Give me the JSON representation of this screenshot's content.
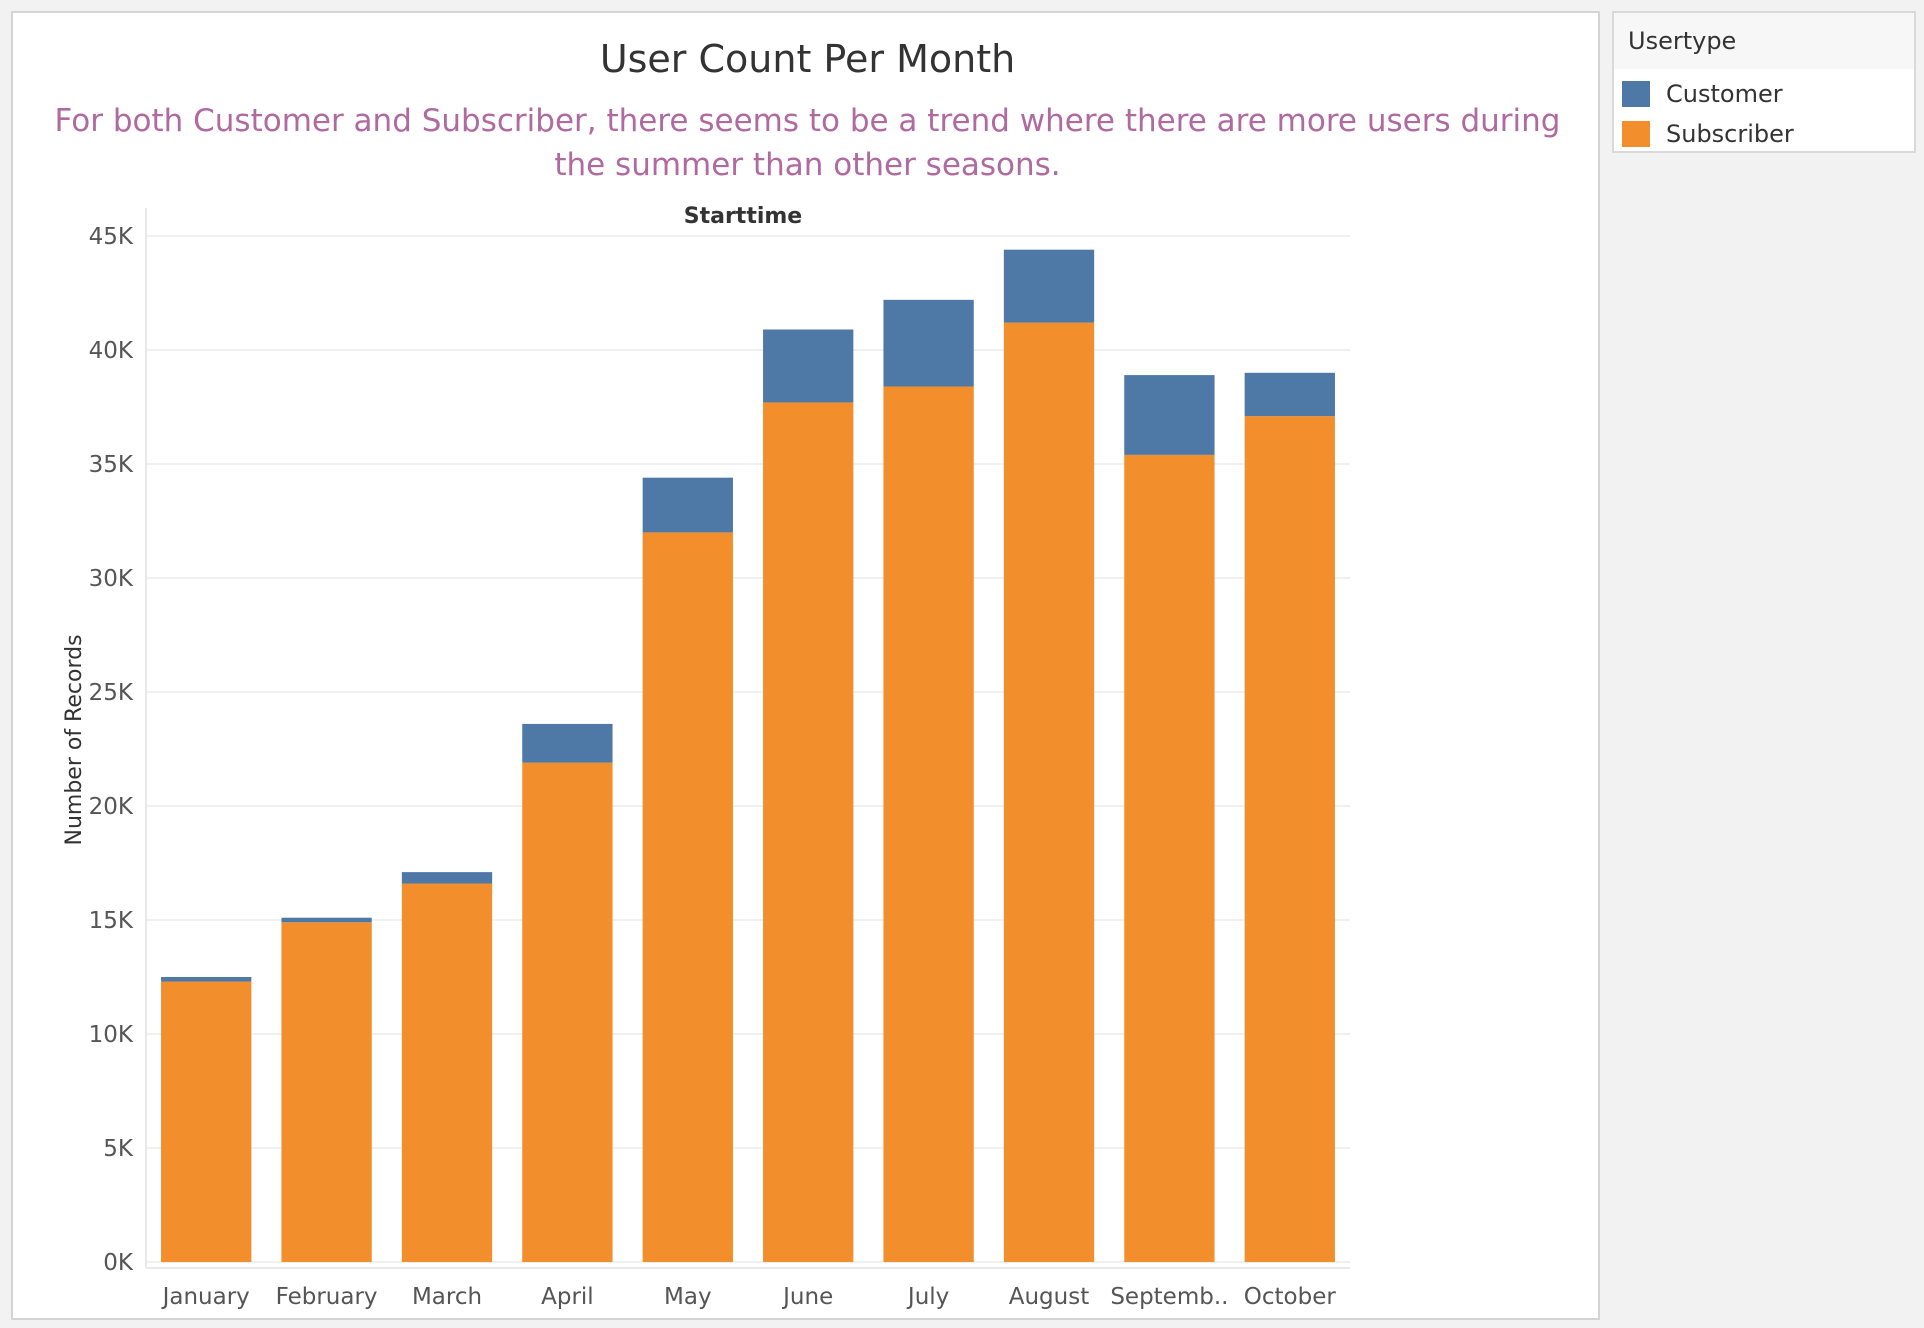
{
  "chart_data": {
    "type": "bar",
    "stacked": true,
    "title": "User Count Per Month",
    "subtitle": "For both Customer and Subscriber, there seems to be a trend where there are more users during the summer than other seasons.",
    "header": "Starttime",
    "xlabel": "",
    "ylabel": "Number of Records",
    "ylim": [
      0,
      45000
    ],
    "yticks": [
      0,
      5000,
      10000,
      15000,
      20000,
      25000,
      30000,
      35000,
      40000,
      45000
    ],
    "ytick_labels": [
      "0K",
      "5K",
      "10K",
      "15K",
      "20K",
      "25K",
      "30K",
      "35K",
      "40K",
      "45K"
    ],
    "categories": [
      "January",
      "February",
      "March",
      "April",
      "May",
      "June",
      "July",
      "August",
      "Septemb..",
      "October"
    ],
    "series": [
      {
        "name": "Subscriber",
        "color": "#f28e2b",
        "values": [
          12300,
          14900,
          16600,
          21900,
          32000,
          37700,
          38400,
          41200,
          35400,
          37100
        ]
      },
      {
        "name": "Customer",
        "color": "#4e79a7",
        "values": [
          200,
          200,
          500,
          1700,
          2400,
          3200,
          3800,
          3200,
          3500,
          1900
        ]
      }
    ],
    "grid": true,
    "legend_position": "right"
  },
  "legend": {
    "title": "Usertype",
    "items": [
      {
        "label": "Customer",
        "color": "#4e79a7"
      },
      {
        "label": "Subscriber",
        "color": "#f28e2b"
      }
    ]
  }
}
